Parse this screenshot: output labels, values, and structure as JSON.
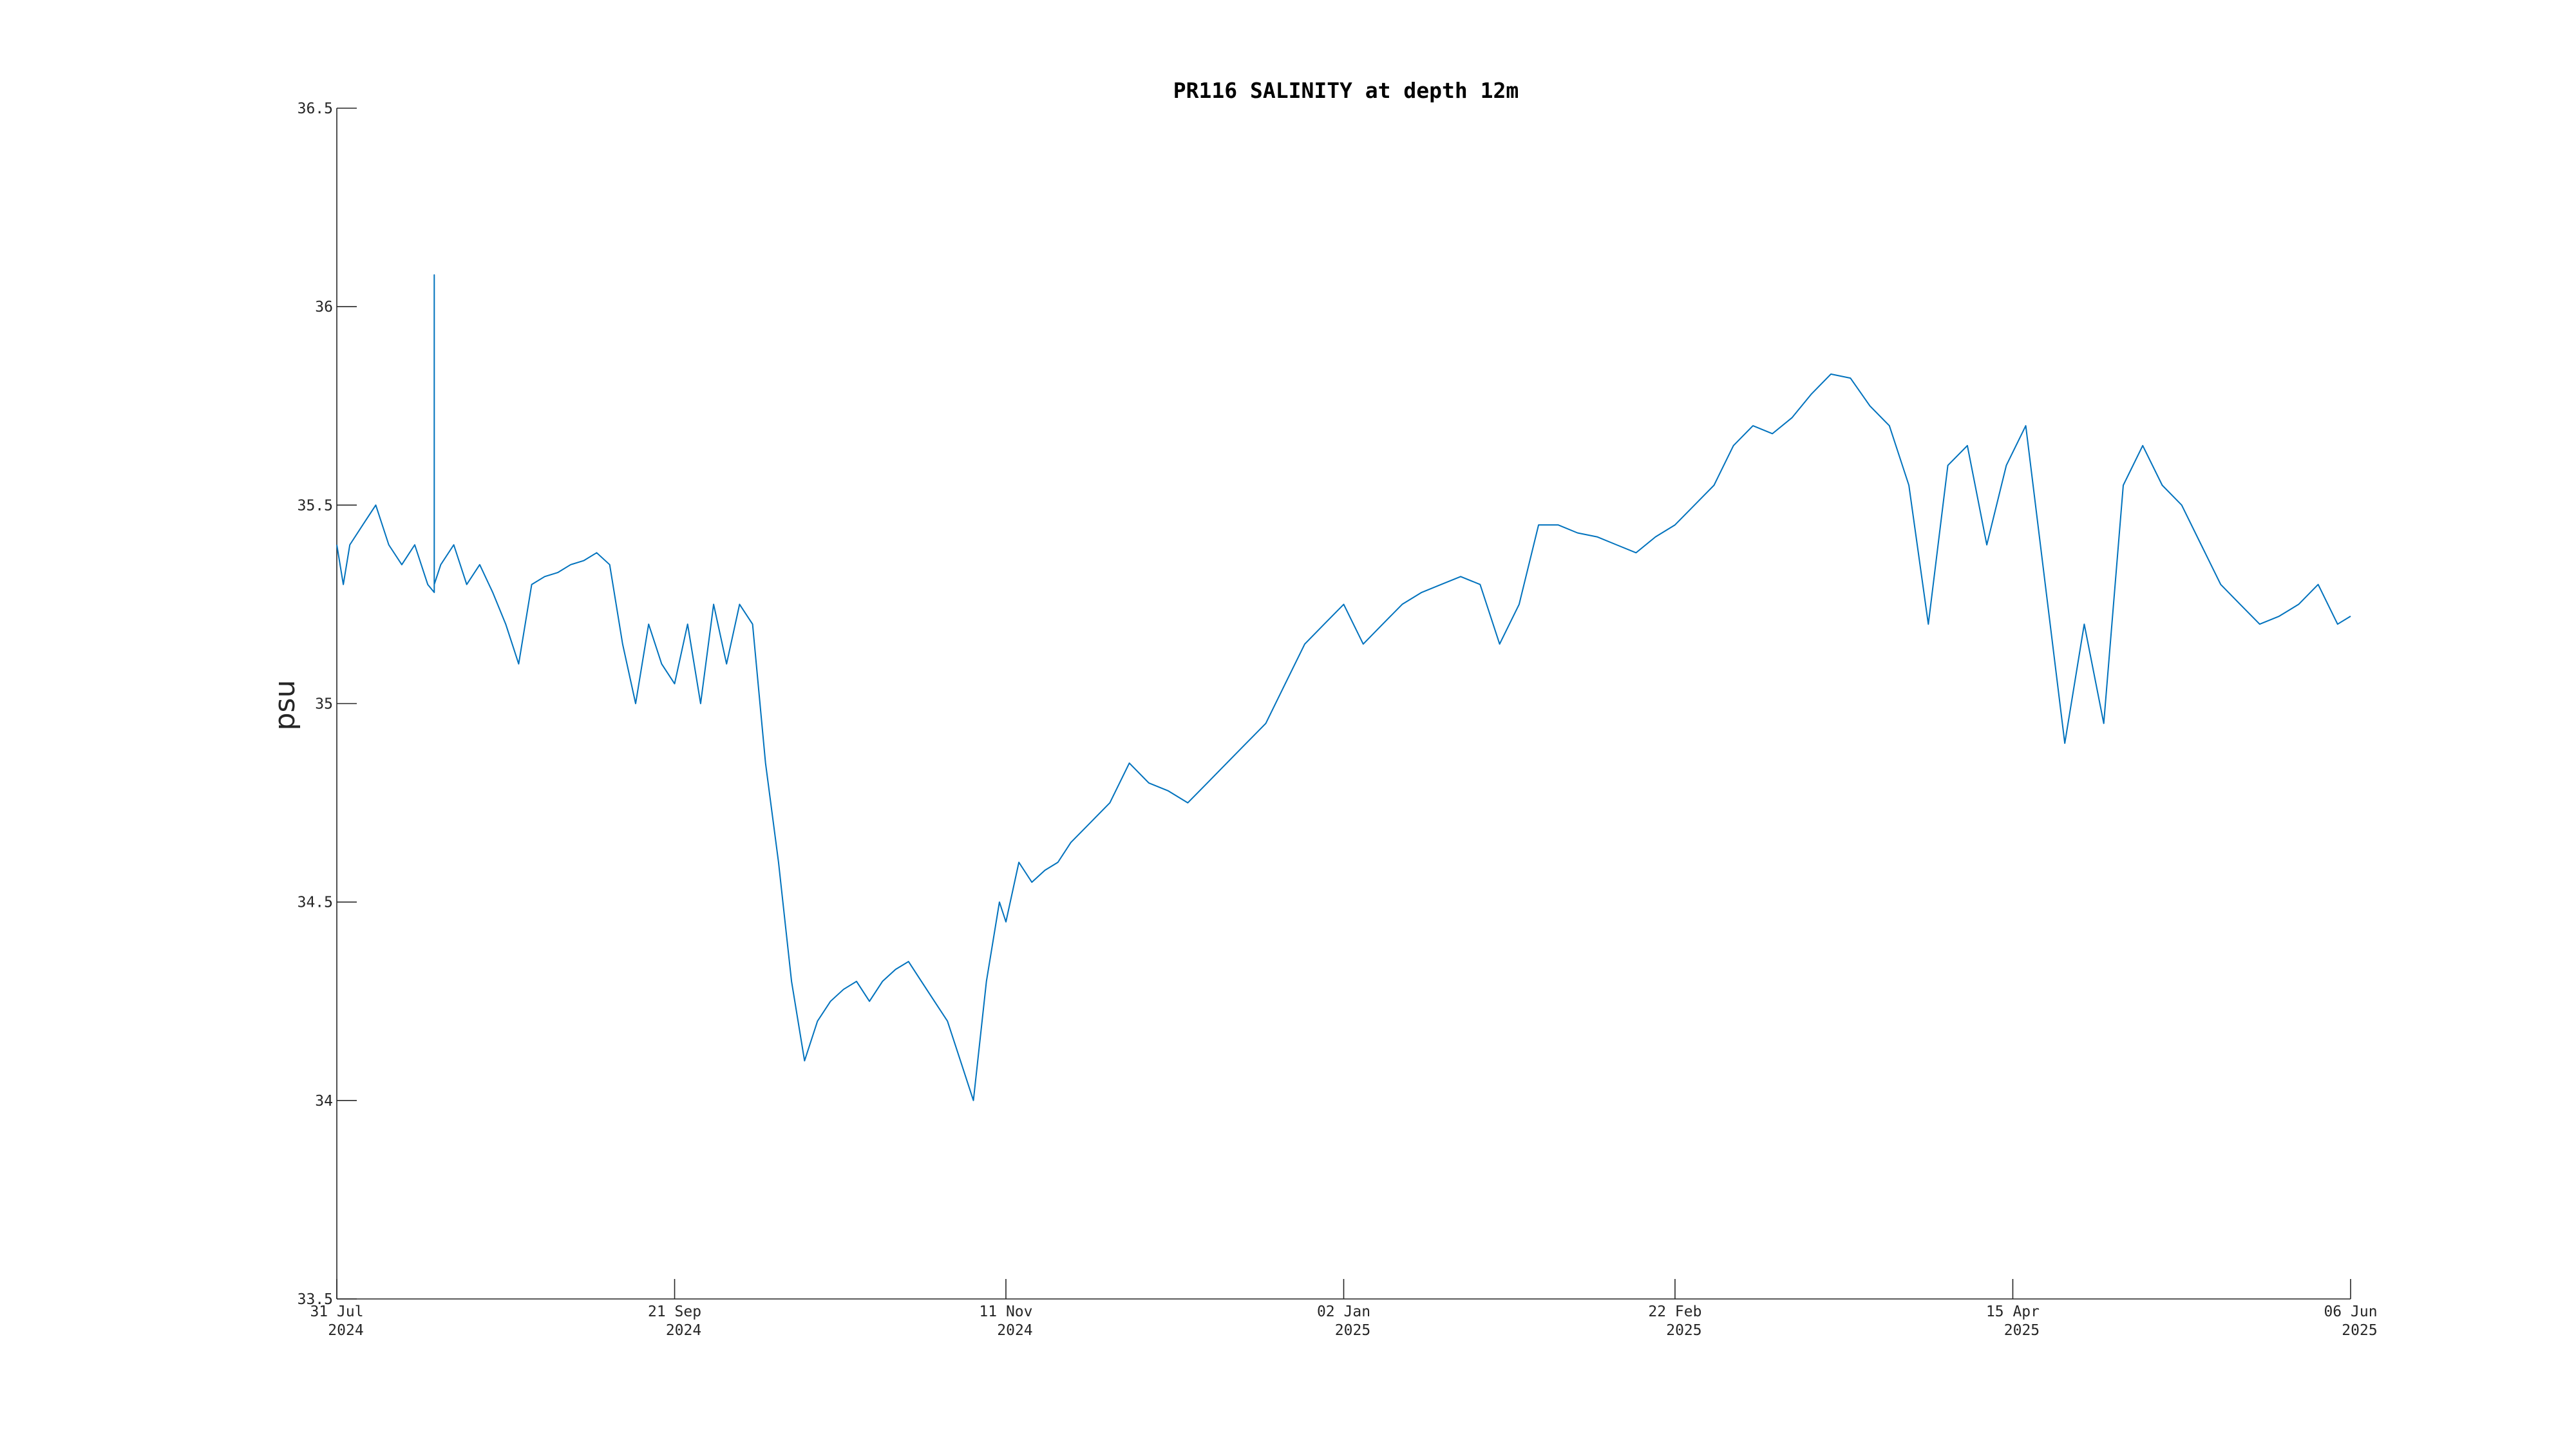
{
  "chart_data": {
    "type": "line",
    "title": "PR116 SALINITY at depth 12m",
    "xlabel": "",
    "ylabel": "psu",
    "xlim": [
      "2024-07-31",
      "2025-06-06"
    ],
    "ylim": [
      33.5,
      36.5
    ],
    "grid": false,
    "legend": "none",
    "colors": {
      "series": "#0072BD",
      "axis": "#262626",
      "title": "#000000"
    },
    "x_ticks": [
      {
        "date": "2024-07-31",
        "line1": "31 Jul",
        "line2": "2024"
      },
      {
        "date": "2024-09-21",
        "line1": "21 Sep",
        "line2": "2024"
      },
      {
        "date": "2024-11-11",
        "line1": "11 Nov",
        "line2": "2024"
      },
      {
        "date": "2025-01-02",
        "line1": "02 Jan",
        "line2": "2025"
      },
      {
        "date": "2025-02-22",
        "line1": "22 Feb",
        "line2": "2025"
      },
      {
        "date": "2025-04-15",
        "line1": "15 Apr",
        "line2": "2025"
      },
      {
        "date": "2025-06-06",
        "line1": "06 Jun",
        "line2": "2025"
      }
    ],
    "y_ticks": [
      {
        "value": 33.5,
        "label": "33.5"
      },
      {
        "value": 34,
        "label": "34"
      },
      {
        "value": 34.5,
        "label": "34.5"
      },
      {
        "value": 35,
        "label": "35"
      },
      {
        "value": 35.5,
        "label": "35.5"
      },
      {
        "value": 36,
        "label": "36"
      },
      {
        "value": 36.5,
        "label": "36.5"
      }
    ],
    "series": [
      {
        "x": [
          "2024-07-31",
          "2024-08-01",
          "2024-08-02",
          "2024-08-04",
          "2024-08-06",
          "2024-08-08",
          "2024-08-10",
          "2024-08-12",
          "2024-08-14",
          "2024-08-15",
          "2024-08-15",
          "2024-08-15",
          "2024-08-16",
          "2024-08-18",
          "2024-08-20",
          "2024-08-22",
          "2024-08-24",
          "2024-08-26",
          "2024-08-28",
          "2024-08-30",
          "2024-09-01",
          "2024-09-03",
          "2024-09-05",
          "2024-09-07",
          "2024-09-09",
          "2024-09-11",
          "2024-09-13",
          "2024-09-15",
          "2024-09-17",
          "2024-09-19",
          "2024-09-21",
          "2024-09-23",
          "2024-09-25",
          "2024-09-27",
          "2024-09-29",
          "2024-10-01",
          "2024-10-03",
          "2024-10-05",
          "2024-10-07",
          "2024-10-09",
          "2024-10-11",
          "2024-10-13",
          "2024-10-15",
          "2024-10-17",
          "2024-10-19",
          "2024-10-21",
          "2024-10-23",
          "2024-10-25",
          "2024-10-27",
          "2024-10-29",
          "2024-10-31",
          "2024-11-02",
          "2024-11-04",
          "2024-11-06",
          "2024-11-08",
          "2024-11-10",
          "2024-11-11",
          "2024-11-13",
          "2024-11-15",
          "2024-11-17",
          "2024-11-19",
          "2024-11-21",
          "2024-11-24",
          "2024-11-27",
          "2024-11-30",
          "2024-12-03",
          "2024-12-06",
          "2024-12-09",
          "2024-12-12",
          "2024-12-15",
          "2024-12-18",
          "2024-12-21",
          "2024-12-24",
          "2024-12-27",
          "2024-12-30",
          "2025-01-02",
          "2025-01-05",
          "2025-01-08",
          "2025-01-11",
          "2025-01-14",
          "2025-01-17",
          "2025-01-20",
          "2025-01-23",
          "2025-01-26",
          "2025-01-29",
          "2025-02-01",
          "2025-02-04",
          "2025-02-07",
          "2025-02-10",
          "2025-02-13",
          "2025-02-16",
          "2025-02-19",
          "2025-02-22",
          "2025-02-25",
          "2025-02-28",
          "2025-03-03",
          "2025-03-06",
          "2025-03-09",
          "2025-03-12",
          "2025-03-15",
          "2025-03-18",
          "2025-03-21",
          "2025-03-24",
          "2025-03-27",
          "2025-03-30",
          "2025-04-02",
          "2025-04-05",
          "2025-04-08",
          "2025-04-11",
          "2025-04-14",
          "2025-04-17",
          "2025-04-20",
          "2025-04-23",
          "2025-04-26",
          "2025-04-29",
          "2025-05-02",
          "2025-05-05",
          "2025-05-08",
          "2025-05-11",
          "2025-05-14",
          "2025-05-17",
          "2025-05-20",
          "2025-05-23",
          "2025-05-26",
          "2025-05-29",
          "2025-06-01",
          "2025-06-04",
          "2025-06-06"
        ],
        "y": [
          35.4,
          35.3,
          35.4,
          35.45,
          35.5,
          35.4,
          35.35,
          35.4,
          35.3,
          35.28,
          36.08,
          35.3,
          35.35,
          35.4,
          35.3,
          35.35,
          35.28,
          35.2,
          35.1,
          35.3,
          35.32,
          35.33,
          35.35,
          35.36,
          35.38,
          35.35,
          35.15,
          35.0,
          35.2,
          35.1,
          35.05,
          35.2,
          35.0,
          35.25,
          35.1,
          35.25,
          35.2,
          34.85,
          34.6,
          34.3,
          34.1,
          34.2,
          34.25,
          34.28,
          34.3,
          34.25,
          34.3,
          34.33,
          34.35,
          34.3,
          34.25,
          34.2,
          34.1,
          34.0,
          34.3,
          34.5,
          34.45,
          34.6,
          34.55,
          34.58,
          34.6,
          34.65,
          34.7,
          34.75,
          34.85,
          34.8,
          34.78,
          34.75,
          34.8,
          34.85,
          34.9,
          34.95,
          35.05,
          35.15,
          35.2,
          35.25,
          35.15,
          35.2,
          35.25,
          35.28,
          35.3,
          35.32,
          35.3,
          35.15,
          35.25,
          35.45,
          35.45,
          35.43,
          35.42,
          35.4,
          35.38,
          35.42,
          35.45,
          35.5,
          35.55,
          35.65,
          35.7,
          35.68,
          35.72,
          35.78,
          35.83,
          35.82,
          35.75,
          35.7,
          35.55,
          35.2,
          35.6,
          35.65,
          35.4,
          35.6,
          35.7,
          35.3,
          34.9,
          35.2,
          34.95,
          35.55,
          35.65,
          35.55,
          35.5,
          35.4,
          35.3,
          35.25,
          35.2,
          35.22,
          35.25,
          35.3,
          35.2,
          35.22
        ]
      }
    ]
  }
}
